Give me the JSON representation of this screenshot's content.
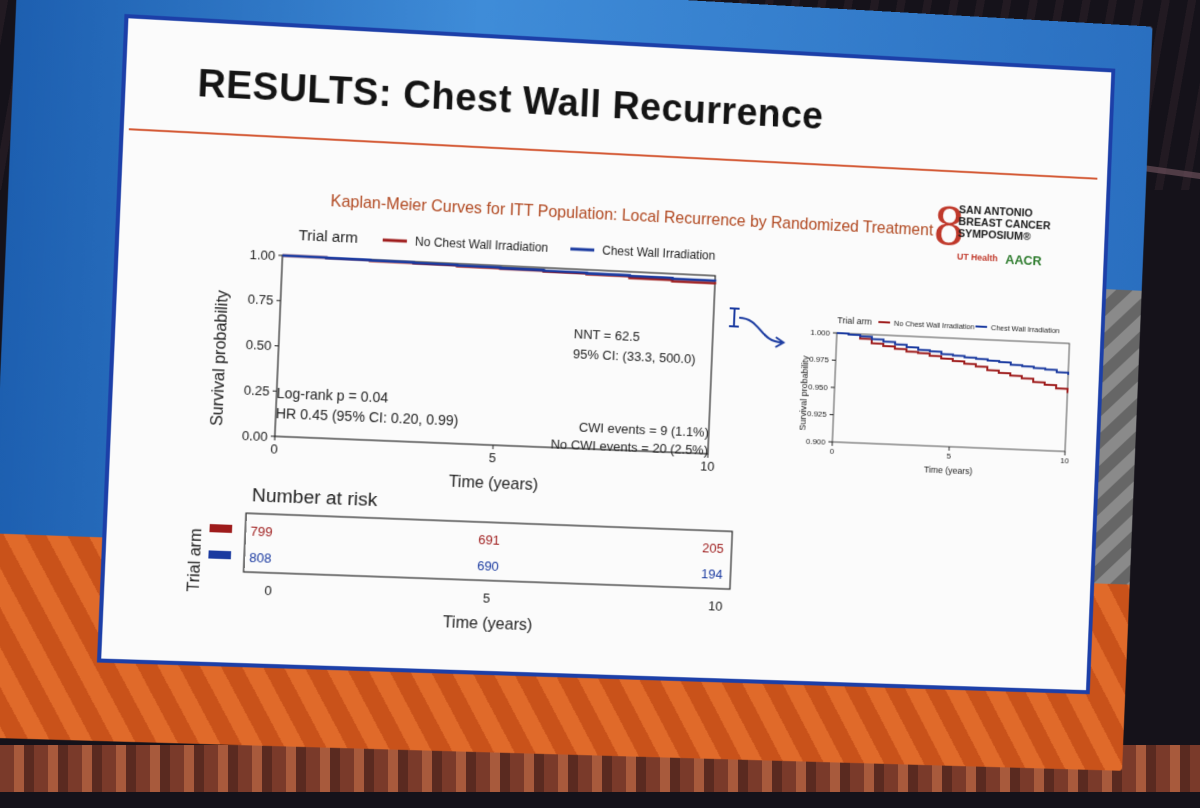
{
  "slide": {
    "title": "RESULTS: Chest Wall Recurrence",
    "subtitle": "Kaplan-Meier Curves for ITT Population:  Local Recurrence by Randomized Treatment",
    "logo": {
      "line1": "SAN ANTONIO",
      "line2": "BREAST CANCER",
      "line3": "SYMPOSIUM®",
      "org1": "UT Health",
      "org2": "AACR"
    }
  },
  "legend": {
    "title": "Trial arm",
    "no_cwi": "No Chest Wall Irradiation",
    "cwi": "Chest Wall Irradiation"
  },
  "colors": {
    "no_cwi": "#9e1b1b",
    "cwi": "#1a3aa0"
  },
  "annotations": {
    "nnt": "NNT = 62.5",
    "ci": "95% CI: (33.3, 500.0)",
    "logrank": "Log-rank p = 0.04",
    "hr": "HR 0.45 (95% CI: 0.20, 0.99)",
    "cwi_events": "CWI events = 9 (1.1%)",
    "no_cwi_events": "No CWI events = 20 (2.5%)"
  },
  "risk_table": {
    "title": "Number at risk",
    "ylabel": "Trial arm",
    "xlabel": "Time (years)",
    "xticks": [
      "0",
      "5",
      "10"
    ],
    "rows": [
      {
        "values": [
          "799",
          "691",
          "205"
        ]
      },
      {
        "values": [
          "808",
          "690",
          "194"
        ]
      }
    ]
  },
  "chart_data": [
    {
      "type": "line",
      "xlabel": "Time (years)",
      "ylabel": "Survival probability",
      "xlim": [
        0,
        10
      ],
      "ylim": [
        0,
        1
      ],
      "xticks": [
        "0",
        "5",
        "10"
      ],
      "yticks": [
        "0.00",
        "0.25",
        "0.50",
        "0.75",
        "1.00"
      ],
      "series": [
        {
          "name": "No Chest Wall Irradiation",
          "x": [
            0,
            1,
            2,
            3,
            4,
            5,
            6,
            7,
            8,
            9,
            10
          ],
          "y": [
            1.0,
            0.997,
            0.993,
            0.99,
            0.986,
            0.983,
            0.979,
            0.975,
            0.965,
            0.958,
            0.952
          ]
        },
        {
          "name": "Chest Wall Irradiation",
          "x": [
            0,
            1,
            2,
            3,
            4,
            5,
            6,
            7,
            8,
            9,
            10
          ],
          "y": [
            1.0,
            0.998,
            0.996,
            0.993,
            0.99,
            0.987,
            0.983,
            0.98,
            0.976,
            0.972,
            0.968
          ]
        }
      ]
    },
    {
      "type": "line",
      "xlabel": "Time (years)",
      "ylabel": "Survival probability",
      "xlim": [
        0,
        10
      ],
      "ylim": [
        0.9,
        1.0
      ],
      "xticks": [
        "0",
        "5",
        "10"
      ],
      "yticks": [
        "0.900",
        "0.925",
        "0.950",
        "0.975",
        "1.000"
      ],
      "legend_title": "Trial arm",
      "series": [
        {
          "name": "No Chest Wall Irradiation",
          "x": [
            0,
            0.5,
            1,
            1.5,
            2,
            2.5,
            3,
            3.5,
            4,
            4.5,
            5,
            5.5,
            6,
            6.5,
            7,
            7.5,
            8,
            8.5,
            9,
            9.5,
            10
          ],
          "y": [
            1.0,
            0.999,
            0.996,
            0.992,
            0.99,
            0.988,
            0.986,
            0.985,
            0.983,
            0.981,
            0.979,
            0.977,
            0.975,
            0.972,
            0.97,
            0.968,
            0.966,
            0.963,
            0.961,
            0.958,
            0.954
          ]
        },
        {
          "name": "Chest Wall Irradiation",
          "x": [
            0,
            0.5,
            1,
            1.5,
            2,
            2.5,
            3,
            3.5,
            4,
            4.5,
            5,
            5.5,
            6,
            6.5,
            7,
            7.5,
            8,
            8.5,
            9,
            9.5,
            10
          ],
          "y": [
            1.0,
            0.999,
            0.998,
            0.996,
            0.994,
            0.992,
            0.99,
            0.988,
            0.987,
            0.985,
            0.984,
            0.983,
            0.982,
            0.981,
            0.98,
            0.978,
            0.977,
            0.976,
            0.975,
            0.973,
            0.971
          ]
        }
      ]
    }
  ]
}
